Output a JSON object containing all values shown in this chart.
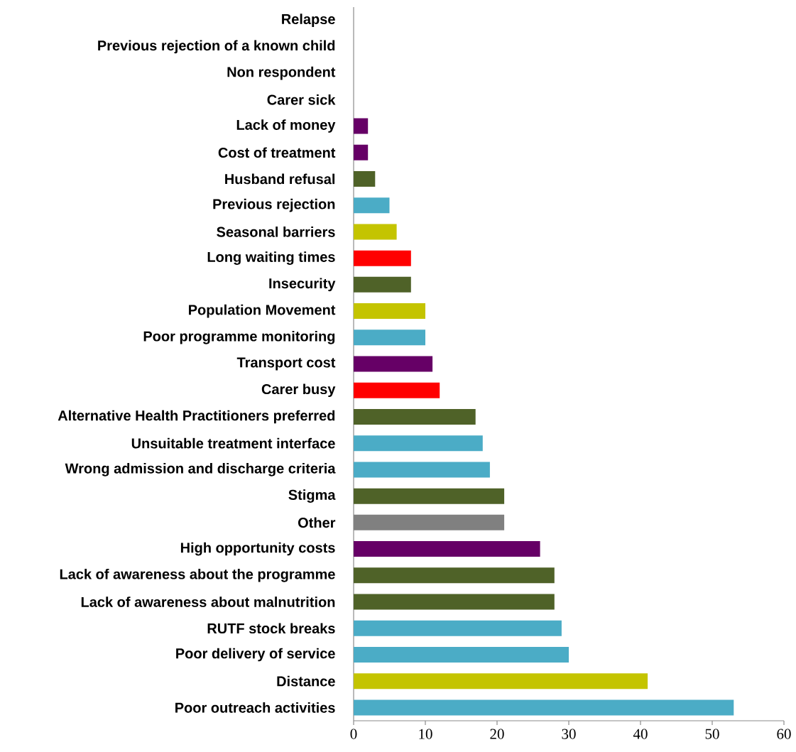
{
  "chart_data": {
    "type": "bar",
    "orientation": "horizontal",
    "categories": [
      "Relapse",
      "Previous rejection of a known child",
      "Non respondent",
      "Carer sick",
      "Lack of money",
      "Cost of treatment",
      "Husband refusal",
      "Previous rejection",
      "Seasonal barriers",
      "Long waiting times",
      "Insecurity",
      "Population Movement",
      "Poor programme monitoring",
      "Transport cost",
      "Carer busy",
      "Alternative Health Practitioners preferred",
      "Unsuitable treatment interface",
      "Wrong admission and discharge criteria",
      "Stigma",
      "Other",
      "High opportunity costs",
      "Lack of awareness about the programme",
      "Lack of awareness about malnutrition",
      "RUTF stock breaks",
      "Poor delivery of service",
      "Distance",
      "Poor outreach activities"
    ],
    "values": [
      0,
      0,
      0,
      0,
      2,
      2,
      3,
      5,
      6,
      8,
      8,
      10,
      10,
      11,
      12,
      17,
      18,
      19,
      21,
      21,
      26,
      28,
      28,
      29,
      30,
      41,
      53
    ],
    "colors": [
      "#4bacc6",
      "#4bacc6",
      "#4bacc6",
      "#4bacc6",
      "#660066",
      "#660066",
      "#4f6228",
      "#4bacc6",
      "#c4c400",
      "#ff0000",
      "#4f6228",
      "#c4c400",
      "#4bacc6",
      "#660066",
      "#ff0000",
      "#4f6228",
      "#4bacc6",
      "#4bacc6",
      "#4f6228",
      "#808080",
      "#660066",
      "#4f6228",
      "#4f6228",
      "#4bacc6",
      "#4bacc6",
      "#c4c400",
      "#4bacc6"
    ],
    "xlim": [
      0,
      60
    ],
    "xticks": [
      0,
      10,
      20,
      30,
      40,
      50,
      60
    ]
  }
}
